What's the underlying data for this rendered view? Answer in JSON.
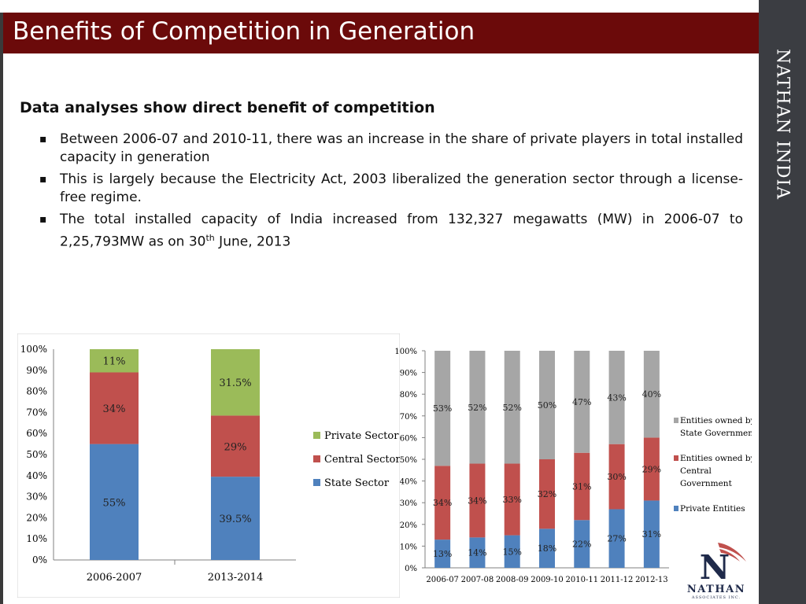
{
  "slide": {
    "title": "Benefits of Competition in Generation",
    "brand": "NATHAN INDIA",
    "subheading": "Data analyses show direct benefit of competition",
    "bullets": [
      "Between 2006-07 and 2010-11, there was an increase in the share of private players in total installed capacity in generation",
      "This is largely because the Electricity Act, 2003 liberalized the generation sector through a license-free regime.",
      {
        "before": "The total installed capacity of India increased from 132,327 megawatts (MW) in 2006-07 to 2,25,793MW as on 30",
        "sup": "th",
        "after": " June, 2013"
      }
    ],
    "logo_text": "NATHAN",
    "logo_letter": "N",
    "logo_subtext": "ASSOCIATES INC."
  },
  "colors": {
    "title_bar": "#6b0a0a",
    "sidebar": "#3b3d42",
    "private": "#9bbb59",
    "central": "#c0504d",
    "state": "#4f81bd",
    "state_gov": "#a6a6a6"
  },
  "chart_data": [
    {
      "type": "bar",
      "stacked": true,
      "categories": [
        "2006-2007",
        "2013-2014"
      ],
      "series": [
        {
          "name": "State Sector",
          "values": [
            55,
            39.5
          ],
          "labels": [
            "55%",
            "39.5%"
          ],
          "color": "#4f81bd"
        },
        {
          "name": "Central Sector",
          "values": [
            34,
            29
          ],
          "labels": [
            "34%",
            "29%"
          ],
          "color": "#c0504d"
        },
        {
          "name": "Private Sector",
          "values": [
            11,
            31.5
          ],
          "labels": [
            "11%",
            "31.5%"
          ],
          "color": "#9bbb59"
        }
      ],
      "yticks": [
        "0%",
        "10%",
        "20%",
        "30%",
        "40%",
        "50%",
        "60%",
        "70%",
        "80%",
        "90%",
        "100%"
      ],
      "ylim": [
        0,
        100
      ],
      "legend": [
        "Private Sector",
        "Central Sector",
        "State Sector"
      ],
      "legend_position": "right"
    },
    {
      "type": "bar",
      "stacked": true,
      "categories": [
        "2006-07",
        "2007-08",
        "2008-09",
        "2009-10",
        "2010-11",
        "2011-12",
        "2012-13"
      ],
      "series": [
        {
          "name": "Private Entities",
          "values": [
            13,
            14,
            15,
            18,
            22,
            27,
            31
          ],
          "labels": [
            "13%",
            "14%",
            "15%",
            "18%",
            "22%",
            "27%",
            "31%"
          ],
          "color": "#4f81bd"
        },
        {
          "name": "Entities owned by Central Government",
          "values": [
            34,
            34,
            33,
            32,
            31,
            30,
            29
          ],
          "labels": [
            "34%",
            "34%",
            "33%",
            "32%",
            "31%",
            "30%",
            "29%"
          ],
          "color": "#c0504d"
        },
        {
          "name": "Entities owned by State Governments",
          "values": [
            53,
            52,
            52,
            50,
            47,
            43,
            40
          ],
          "labels": [
            "53%",
            "52%",
            "52%",
            "50%",
            "47%",
            "43%",
            "40%"
          ],
          "color": "#a6a6a6"
        }
      ],
      "yticks": [
        "0%",
        "10%",
        "20%",
        "30%",
        "40%",
        "50%",
        "60%",
        "70%",
        "80%",
        "90%",
        "100%"
      ],
      "ylim": [
        0,
        100
      ],
      "legend": [
        {
          "lines": [
            "Entities owned by",
            "State Governments"
          ],
          "color": "#a6a6a6"
        },
        {
          "lines": [
            "Entities owned by",
            "Central",
            "Government"
          ],
          "color": "#c0504d"
        },
        {
          "lines": [
            "Private Entities"
          ],
          "color": "#4f81bd"
        }
      ],
      "legend_position": "right"
    }
  ]
}
